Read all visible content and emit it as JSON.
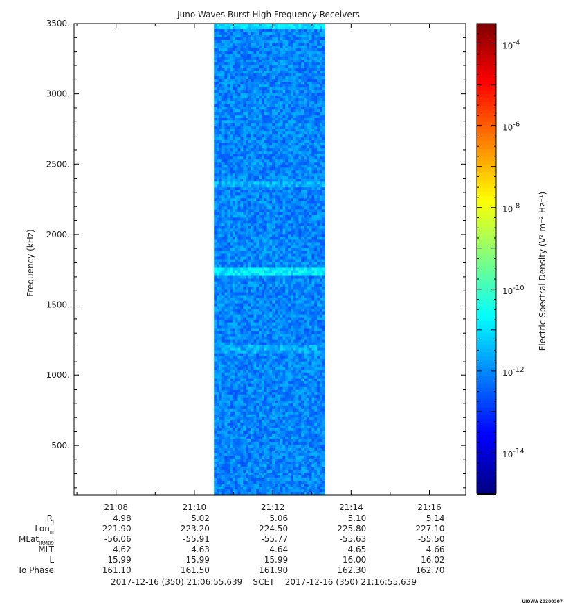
{
  "chart_data": {
    "type": "heatmap",
    "title": "Juno Waves Burst High Frequency Receivers",
    "ylabel": "Frequency (kHz)",
    "colorbar_label": "Electric Spectral Density (V² m⁻² Hz⁻¹)",
    "ylim": [
      150,
      3500
    ],
    "y_ticks": [
      500,
      1000,
      1500,
      2000,
      2500,
      3000,
      3500
    ],
    "y_tick_labels": [
      "500.",
      "1000.",
      "1500.",
      "2000.",
      "2500.",
      "3000.",
      "3500."
    ],
    "x_ticks": [
      "21:08",
      "21:10",
      "21:12",
      "21:14",
      "21:16"
    ],
    "time_range": [
      "2017-12-16 21:06:55.639",
      "2017-12-16 21:16:55.639"
    ],
    "data_time_range": [
      "21:10:30",
      "21:13:20"
    ],
    "colorbar_range_log10": [
      -15,
      -3.5
    ],
    "colorbar_ticks_log10": [
      -14,
      -12,
      -10,
      -8,
      -6,
      -4
    ],
    "colorbar_tick_labels": [
      "10-14",
      "10-12",
      "10-10",
      "10-8",
      "10-6",
      "10-4"
    ],
    "typical_log10_density": -12,
    "enhanced_bands_khz": [
      {
        "freq": 3480,
        "log10_density": -11
      },
      {
        "freq": 2360,
        "log10_density": -11.5
      },
      {
        "freq": 1740,
        "log10_density": -10.8
      },
      {
        "freq": 1180,
        "log10_density": -11.6
      }
    ],
    "colors": {
      "low": "#00007f",
      "mid": "#00ffcc",
      "high": "#ff0000"
    }
  },
  "ephemeris": {
    "rows": [
      {
        "label": "R",
        "sub": "J",
        "values": [
          "4.98",
          "5.02",
          "5.06",
          "5.10",
          "5.14"
        ]
      },
      {
        "label": "Lon",
        "sub": "III",
        "values": [
          "221.90",
          "223.20",
          "224.50",
          "225.80",
          "227.10"
        ]
      },
      {
        "label": "MLat",
        "sub": "JRM09",
        "values": [
          "-56.06",
          "-55.91",
          "-55.77",
          "-55.63",
          "-55.50"
        ]
      },
      {
        "label": "MLT",
        "sub": "",
        "values": [
          "4.62",
          "4.63",
          "4.64",
          "4.65",
          "4.66"
        ]
      },
      {
        "label": "L",
        "sub": "",
        "values": [
          "15.99",
          "15.99",
          "15.99",
          "16.00",
          "16.02"
        ]
      },
      {
        "label": "Io Phase",
        "sub": "",
        "values": [
          "161.10",
          "161.50",
          "161.90",
          "162.30",
          "162.70"
        ]
      }
    ]
  },
  "footer": {
    "start": "2017-12-16 (350) 21:06:55.639",
    "frame": "SCET",
    "end": "2017-12-16 (350) 21:16:55.639"
  },
  "stamp": "UIOWA 20200307"
}
